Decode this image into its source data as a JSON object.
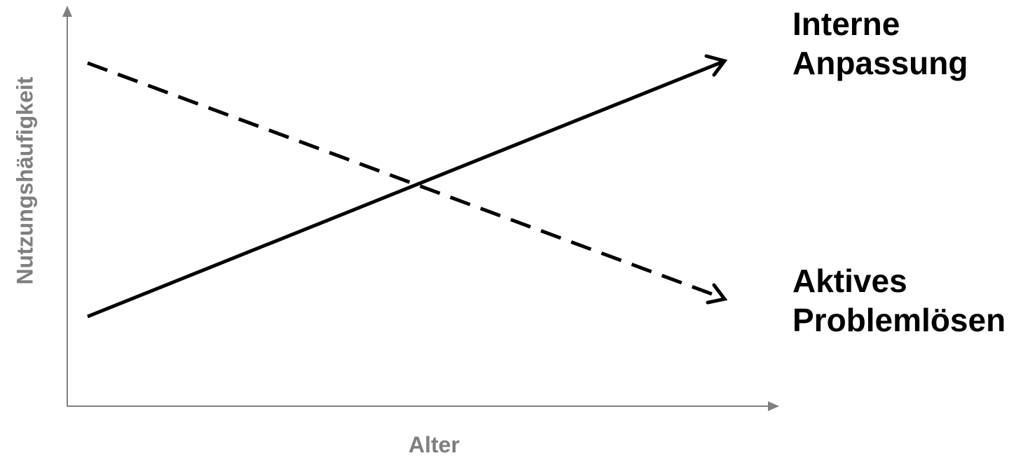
{
  "axes": {
    "x_label": "Alter",
    "y_label": "Nutzungshäufigkeit",
    "color": "#7f7f7f"
  },
  "series": [
    {
      "name_line1": "Interne",
      "name_line2": "Anpassung",
      "style": "solid",
      "trend": "increasing",
      "start_level": 0.32,
      "end_level": 1.0
    },
    {
      "name_line1": "Aktives",
      "name_line2": "Problemlösen",
      "style": "dashed",
      "trend": "decreasing",
      "start_level": 1.0,
      "end_level": 0.31
    }
  ],
  "line_color": "#000000"
}
